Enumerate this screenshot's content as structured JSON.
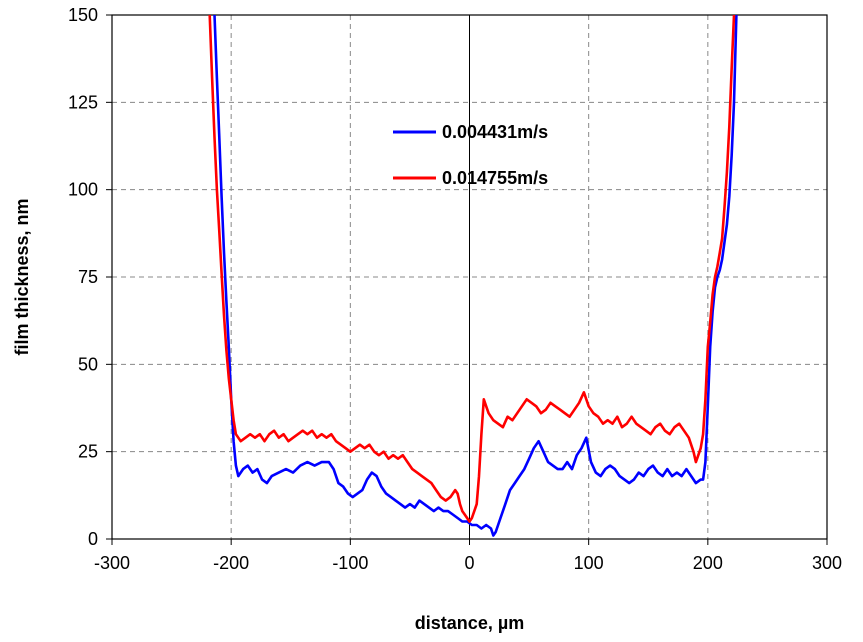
{
  "chart_data": {
    "type": "line",
    "title": "",
    "xlabel": "distance, µm",
    "ylabel": "film thickness, nm",
    "xlim": [
      -300,
      300
    ],
    "ylim": [
      0,
      150
    ],
    "x_ticks": [
      -300,
      -200,
      -100,
      0,
      100,
      200,
      300
    ],
    "y_ticks": [
      0,
      25,
      50,
      75,
      100,
      125,
      150
    ],
    "grid": true,
    "legend_position": "top-center",
    "series": [
      {
        "name": "0.004431m/s",
        "color": "#0000ff",
        "points": [
          [
            -214,
            150
          ],
          [
            -212,
            132
          ],
          [
            -210,
            115
          ],
          [
            -208,
            98
          ],
          [
            -206,
            82
          ],
          [
            -204,
            68
          ],
          [
            -202,
            55
          ],
          [
            -200,
            40
          ],
          [
            -198,
            28
          ],
          [
            -196,
            21
          ],
          [
            -194,
            18
          ],
          [
            -190,
            20
          ],
          [
            -186,
            21
          ],
          [
            -182,
            19
          ],
          [
            -178,
            20
          ],
          [
            -174,
            17
          ],
          [
            -170,
            16
          ],
          [
            -166,
            18
          ],
          [
            -160,
            19
          ],
          [
            -154,
            20
          ],
          [
            -148,
            19
          ],
          [
            -142,
            21
          ],
          [
            -136,
            22
          ],
          [
            -130,
            21
          ],
          [
            -124,
            22
          ],
          [
            -118,
            22
          ],
          [
            -114,
            20
          ],
          [
            -110,
            16
          ],
          [
            -106,
            15
          ],
          [
            -102,
            13
          ],
          [
            -98,
            12
          ],
          [
            -94,
            13
          ],
          [
            -90,
            14
          ],
          [
            -86,
            17
          ],
          [
            -82,
            19
          ],
          [
            -78,
            18
          ],
          [
            -74,
            15
          ],
          [
            -70,
            13
          ],
          [
            -66,
            12
          ],
          [
            -62,
            11
          ],
          [
            -58,
            10
          ],
          [
            -54,
            9
          ],
          [
            -50,
            10
          ],
          [
            -46,
            9
          ],
          [
            -42,
            11
          ],
          [
            -38,
            10
          ],
          [
            -34,
            9
          ],
          [
            -30,
            8
          ],
          [
            -26,
            9
          ],
          [
            -22,
            8
          ],
          [
            -18,
            8
          ],
          [
            -14,
            7
          ],
          [
            -10,
            6
          ],
          [
            -6,
            5
          ],
          [
            -2,
            5
          ],
          [
            2,
            4
          ],
          [
            6,
            4
          ],
          [
            10,
            3
          ],
          [
            14,
            4
          ],
          [
            18,
            3
          ],
          [
            20,
            1
          ],
          [
            22,
            2
          ],
          [
            24,
            4
          ],
          [
            26,
            6
          ],
          [
            30,
            10
          ],
          [
            34,
            14
          ],
          [
            38,
            16
          ],
          [
            42,
            18
          ],
          [
            46,
            20
          ],
          [
            50,
            23
          ],
          [
            54,
            26
          ],
          [
            58,
            28
          ],
          [
            62,
            25
          ],
          [
            66,
            22
          ],
          [
            70,
            21
          ],
          [
            74,
            20
          ],
          [
            78,
            20
          ],
          [
            82,
            22
          ],
          [
            86,
            20
          ],
          [
            90,
            24
          ],
          [
            94,
            26
          ],
          [
            98,
            29
          ],
          [
            102,
            22
          ],
          [
            106,
            19
          ],
          [
            110,
            18
          ],
          [
            114,
            20
          ],
          [
            118,
            21
          ],
          [
            122,
            20
          ],
          [
            126,
            18
          ],
          [
            130,
            17
          ],
          [
            134,
            16
          ],
          [
            138,
            17
          ],
          [
            142,
            19
          ],
          [
            146,
            18
          ],
          [
            150,
            20
          ],
          [
            154,
            21
          ],
          [
            158,
            19
          ],
          [
            162,
            18
          ],
          [
            166,
            20
          ],
          [
            170,
            18
          ],
          [
            174,
            19
          ],
          [
            178,
            18
          ],
          [
            182,
            20
          ],
          [
            186,
            18
          ],
          [
            190,
            16
          ],
          [
            194,
            17
          ],
          [
            196,
            17
          ],
          [
            198,
            22
          ],
          [
            200,
            38
          ],
          [
            202,
            55
          ],
          [
            204,
            65
          ],
          [
            206,
            72
          ],
          [
            208,
            75
          ],
          [
            210,
            77
          ],
          [
            212,
            80
          ],
          [
            214,
            85
          ],
          [
            216,
            90
          ],
          [
            218,
            98
          ],
          [
            220,
            110
          ],
          [
            222,
            125
          ],
          [
            224,
            150
          ]
        ]
      },
      {
        "name": "0.014755m/s",
        "color": "#ff0000",
        "points": [
          [
            -218,
            150
          ],
          [
            -216,
            132
          ],
          [
            -214,
            115
          ],
          [
            -212,
            100
          ],
          [
            -210,
            88
          ],
          [
            -208,
            76
          ],
          [
            -206,
            64
          ],
          [
            -204,
            54
          ],
          [
            -202,
            46
          ],
          [
            -200,
            40
          ],
          [
            -198,
            34
          ],
          [
            -196,
            30
          ],
          [
            -192,
            28
          ],
          [
            -188,
            29
          ],
          [
            -184,
            30
          ],
          [
            -180,
            29
          ],
          [
            -176,
            30
          ],
          [
            -172,
            28
          ],
          [
            -168,
            30
          ],
          [
            -164,
            31
          ],
          [
            -160,
            29
          ],
          [
            -156,
            30
          ],
          [
            -152,
            28
          ],
          [
            -148,
            29
          ],
          [
            -144,
            30
          ],
          [
            -140,
            31
          ],
          [
            -136,
            30
          ],
          [
            -132,
            31
          ],
          [
            -128,
            29
          ],
          [
            -124,
            30
          ],
          [
            -120,
            29
          ],
          [
            -116,
            30
          ],
          [
            -112,
            28
          ],
          [
            -108,
            27
          ],
          [
            -104,
            26
          ],
          [
            -100,
            25
          ],
          [
            -96,
            26
          ],
          [
            -92,
            27
          ],
          [
            -88,
            26
          ],
          [
            -84,
            27
          ],
          [
            -80,
            25
          ],
          [
            -76,
            24
          ],
          [
            -72,
            25
          ],
          [
            -68,
            23
          ],
          [
            -64,
            24
          ],
          [
            -60,
            23
          ],
          [
            -56,
            24
          ],
          [
            -52,
            22
          ],
          [
            -48,
            20
          ],
          [
            -44,
            19
          ],
          [
            -40,
            18
          ],
          [
            -36,
            17
          ],
          [
            -32,
            16
          ],
          [
            -28,
            14
          ],
          [
            -24,
            12
          ],
          [
            -20,
            11
          ],
          [
            -16,
            12
          ],
          [
            -14,
            13
          ],
          [
            -12,
            14
          ],
          [
            -10,
            13
          ],
          [
            -8,
            10
          ],
          [
            -6,
            8
          ],
          [
            -4,
            7
          ],
          [
            -2,
            6
          ],
          [
            0,
            5
          ],
          [
            2,
            6
          ],
          [
            4,
            8
          ],
          [
            6,
            10
          ],
          [
            8,
            18
          ],
          [
            10,
            30
          ],
          [
            12,
            40
          ],
          [
            14,
            38
          ],
          [
            16,
            36
          ],
          [
            20,
            34
          ],
          [
            24,
            33
          ],
          [
            28,
            32
          ],
          [
            32,
            35
          ],
          [
            36,
            34
          ],
          [
            40,
            36
          ],
          [
            44,
            38
          ],
          [
            48,
            40
          ],
          [
            52,
            39
          ],
          [
            56,
            38
          ],
          [
            60,
            36
          ],
          [
            64,
            37
          ],
          [
            68,
            39
          ],
          [
            72,
            38
          ],
          [
            76,
            37
          ],
          [
            80,
            36
          ],
          [
            84,
            35
          ],
          [
            88,
            37
          ],
          [
            92,
            39
          ],
          [
            96,
            42
          ],
          [
            100,
            38
          ],
          [
            104,
            36
          ],
          [
            108,
            35
          ],
          [
            112,
            33
          ],
          [
            116,
            34
          ],
          [
            120,
            33
          ],
          [
            124,
            35
          ],
          [
            128,
            32
          ],
          [
            132,
            33
          ],
          [
            136,
            35
          ],
          [
            140,
            33
          ],
          [
            144,
            32
          ],
          [
            148,
            31
          ],
          [
            152,
            30
          ],
          [
            156,
            32
          ],
          [
            160,
            33
          ],
          [
            164,
            31
          ],
          [
            168,
            30
          ],
          [
            172,
            32
          ],
          [
            176,
            33
          ],
          [
            180,
            31
          ],
          [
            184,
            29
          ],
          [
            188,
            25
          ],
          [
            190,
            22
          ],
          [
            192,
            24
          ],
          [
            194,
            26
          ],
          [
            196,
            30
          ],
          [
            198,
            40
          ],
          [
            200,
            55
          ],
          [
            202,
            62
          ],
          [
            204,
            70
          ],
          [
            206,
            75
          ],
          [
            208,
            78
          ],
          [
            210,
            82
          ],
          [
            212,
            86
          ],
          [
            214,
            95
          ],
          [
            216,
            105
          ],
          [
            218,
            118
          ],
          [
            220,
            135
          ],
          [
            222,
            150
          ]
        ]
      }
    ]
  }
}
